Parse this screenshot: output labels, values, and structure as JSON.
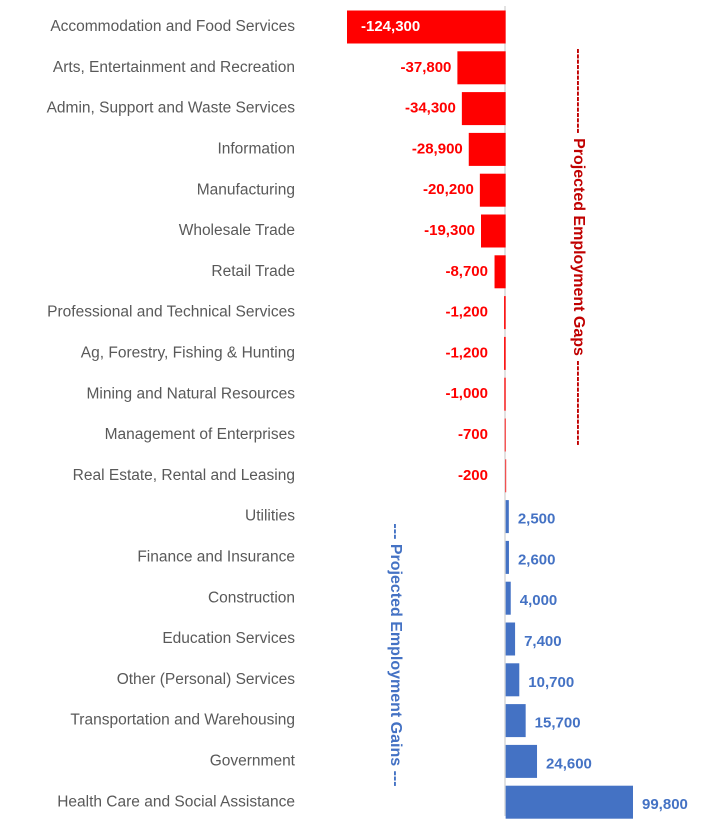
{
  "chart_data": {
    "type": "bar",
    "orientation": "horizontal",
    "categories": [
      "Accommodation and Food Services",
      "Arts, Entertainment and Recreation",
      "Admin, Support and Waste Services",
      "Information",
      "Manufacturing",
      "Wholesale Trade",
      "Retail Trade",
      "Professional and Technical Services",
      "Ag, Forestry, Fishing & Hunting",
      "Mining and Natural Resources",
      "Management of Enterprises",
      "Real Estate, Rental and Leasing",
      "Utilities",
      "Finance and Insurance",
      "Construction",
      "Education Services",
      "Other (Personal) Services",
      "Transportation and Warehousing",
      "Government",
      "Health Care and Social Assistance"
    ],
    "values": [
      -124300,
      -37800,
      -34300,
      -28900,
      -20200,
      -19300,
      -8700,
      -1200,
      -1200,
      -1000,
      -700,
      -200,
      2500,
      2600,
      4000,
      7400,
      10700,
      15700,
      24600,
      99800
    ],
    "value_labels": [
      "-124,300",
      "-37,800",
      "-34,300",
      "-28,900",
      "-20,200",
      "-19,300",
      "-8,700",
      "-1,200",
      "-1,200",
      "-1,000",
      "-700",
      "-200",
      "2,500",
      "2,600",
      "4,000",
      "7,400",
      "10,700",
      "15,700",
      "24,600",
      "99,800"
    ],
    "negative_color": "#ff0000",
    "positive_color": "#4472c4",
    "annotations": [
      {
        "text": "---------------- Projected Employment Gaps ----------------",
        "color": "#c00000"
      },
      {
        "text": "--- Projected Employment Gains ---",
        "color": "#4472c4"
      }
    ]
  }
}
